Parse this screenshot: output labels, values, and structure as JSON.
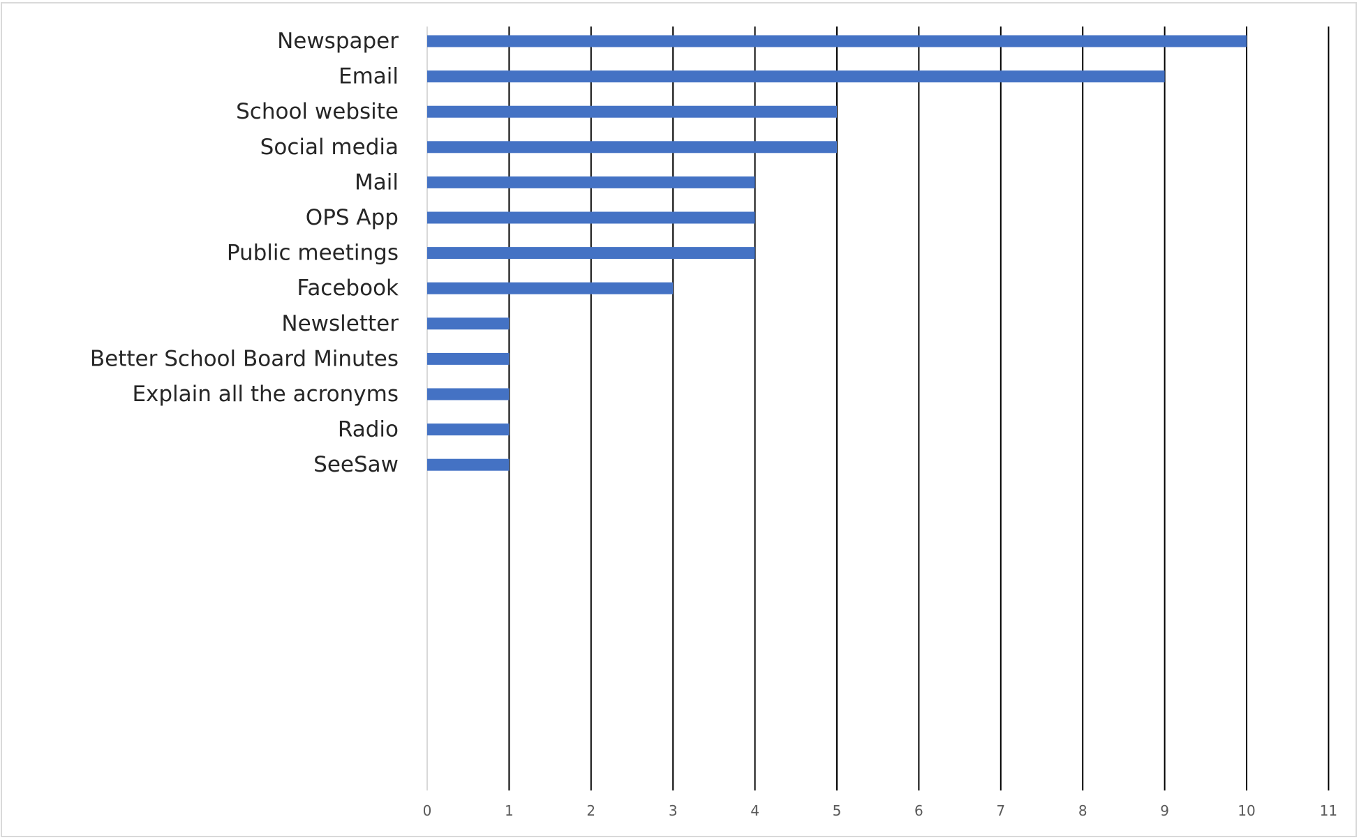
{
  "chart_data": {
    "type": "bar",
    "orientation": "horizontal",
    "title": "",
    "xlabel": "",
    "ylabel": "",
    "categories": [
      "Newspaper",
      "Email",
      "School website",
      "Social media",
      "Mail",
      "OPS App",
      "Public meetings",
      "Facebook",
      "Newsletter",
      "Better School Board Minutes",
      "Explain all the acronyms",
      "Radio",
      "SeeSaw"
    ],
    "values": [
      10,
      9,
      5,
      5,
      4,
      4,
      4,
      3,
      1,
      1,
      1,
      1,
      1
    ],
    "xlim": [
      0,
      11
    ],
    "x_ticks": [
      "0",
      "1",
      "2",
      "3",
      "4",
      "5",
      "6",
      "7",
      "8",
      "9",
      "10",
      "11"
    ],
    "grid": "vertical",
    "legend": "none",
    "colors": {
      "bar": "#4472c4",
      "grid": "#000000",
      "tick_text": "#595959",
      "label_text": "#262626",
      "border": "#d9d9d9"
    }
  }
}
